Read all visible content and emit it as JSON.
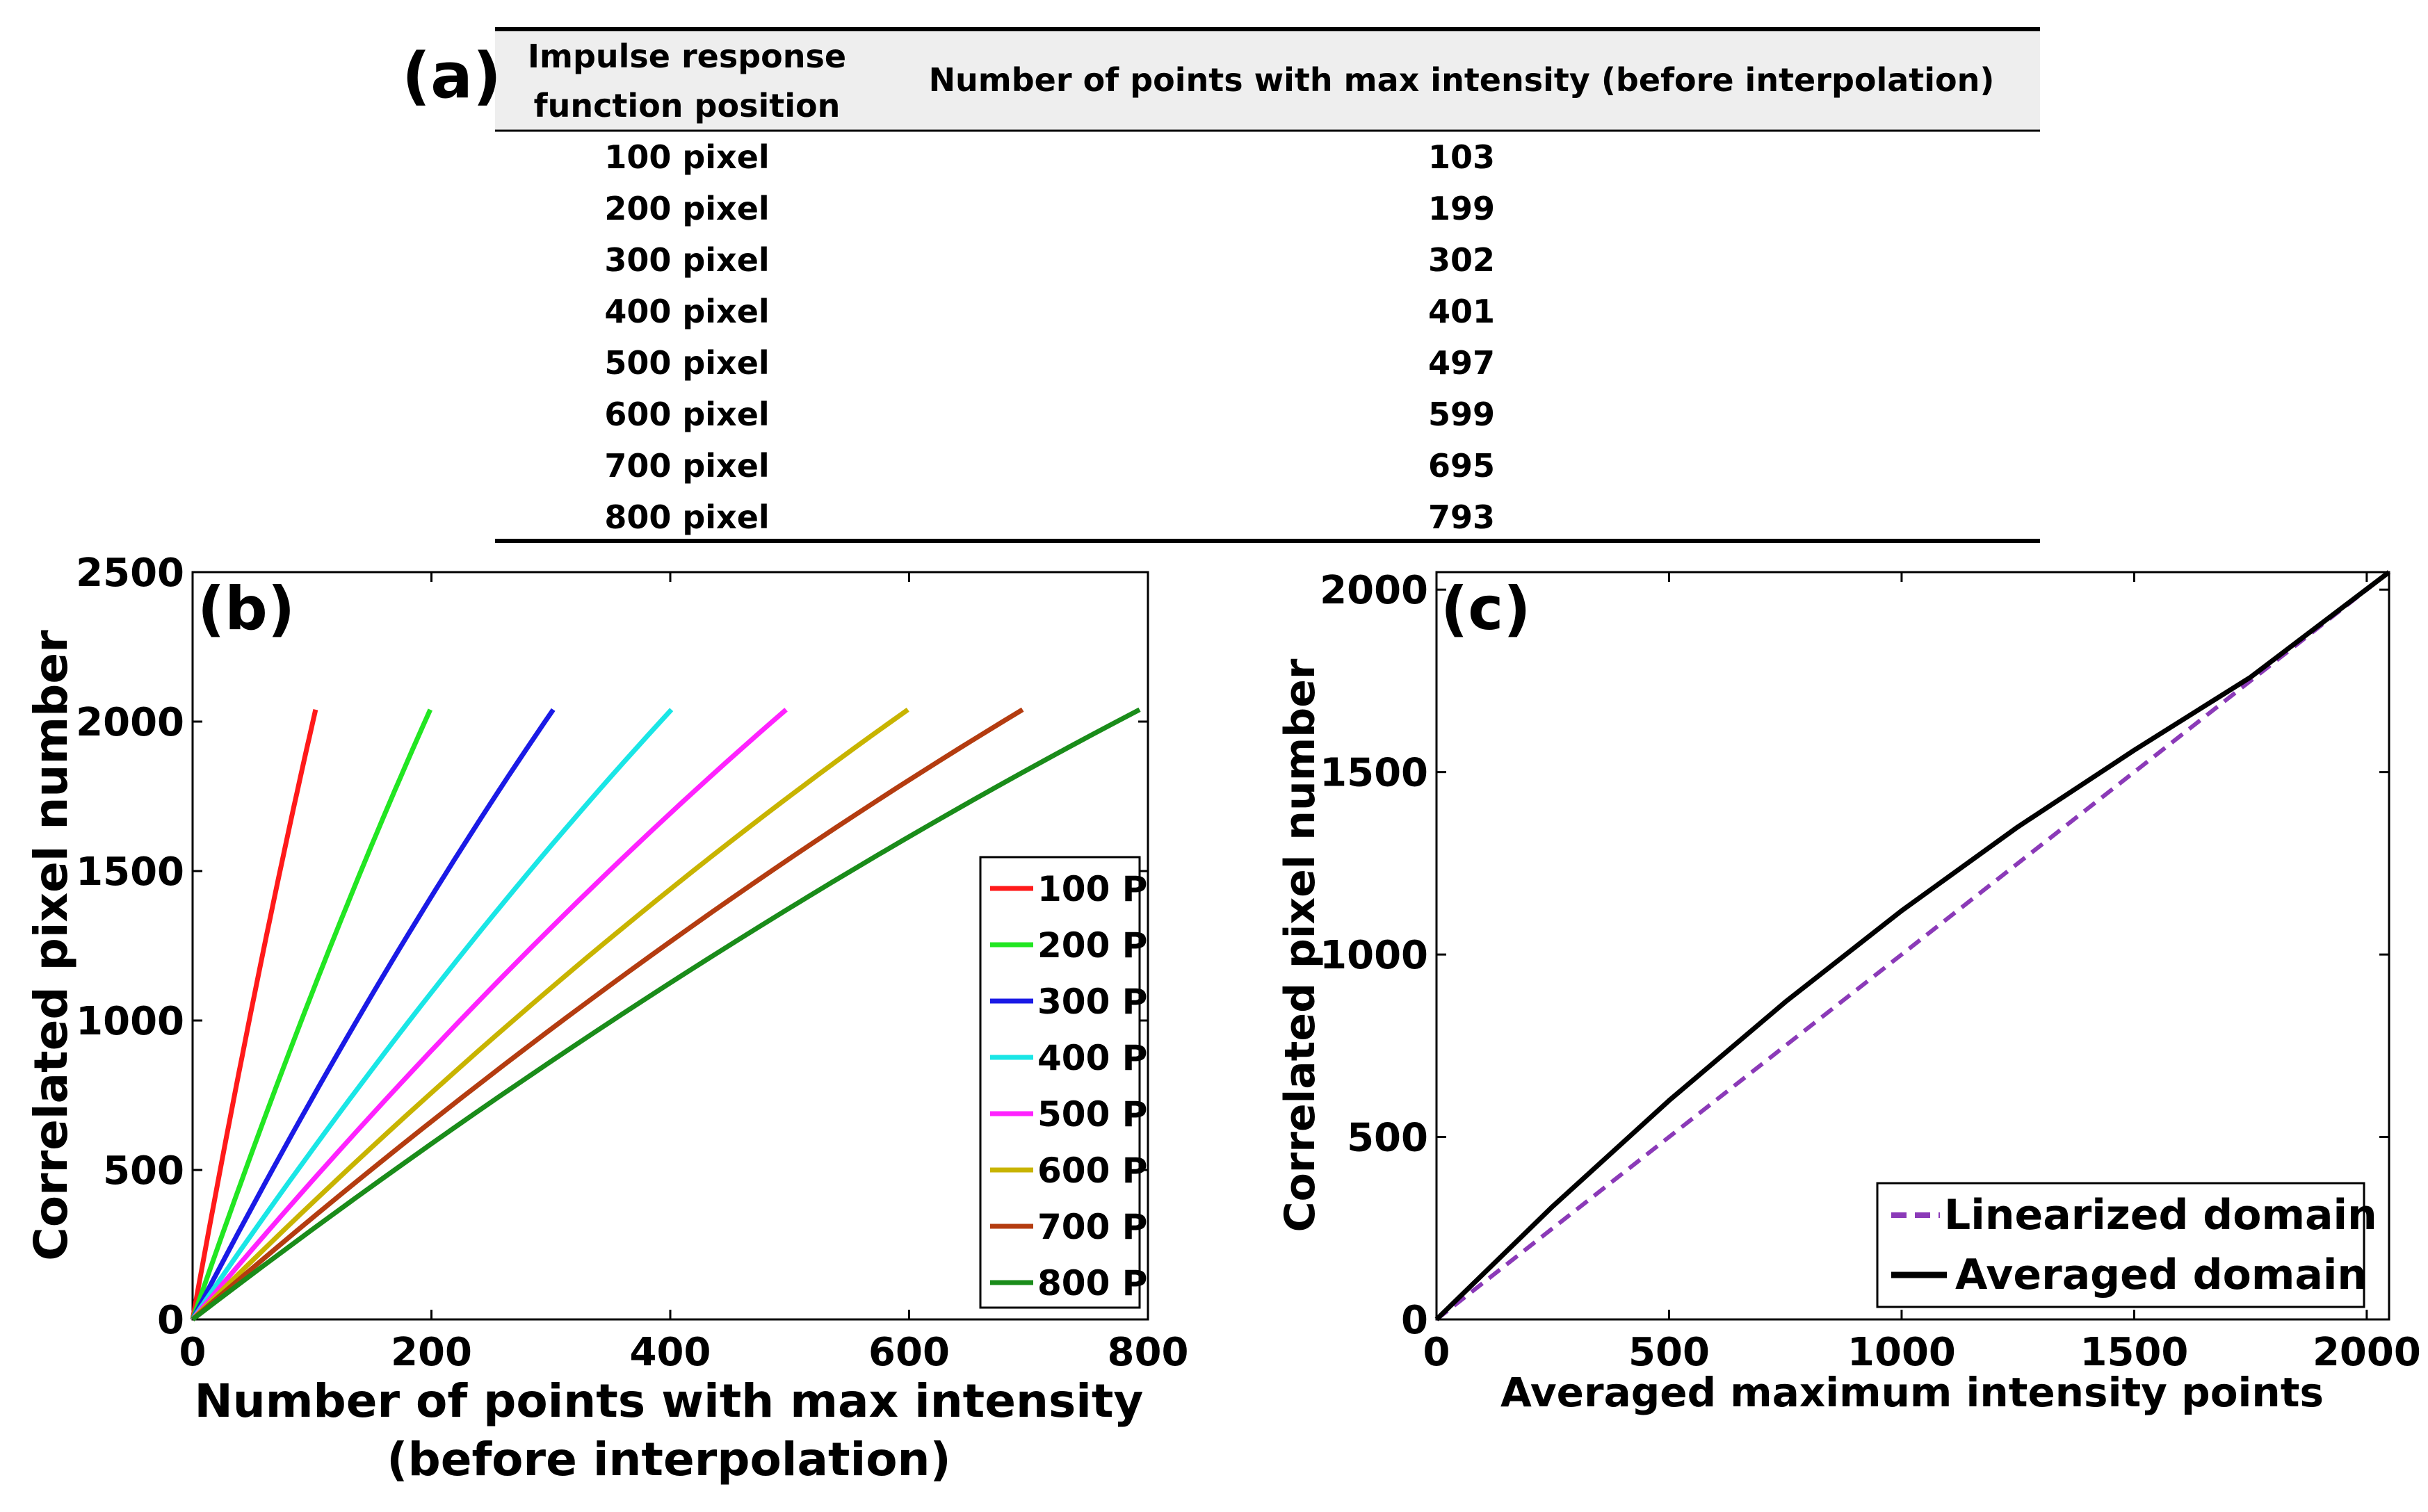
{
  "panel_a": {
    "label": "(a)",
    "col1_header_line1": "Impulse response",
    "col1_header_line2": "function position",
    "col2_header": "Number of points with max intensity (before interpolation)",
    "rows": [
      {
        "position": "100 pixel",
        "points": "103"
      },
      {
        "position": "200 pixel",
        "points": "199"
      },
      {
        "position": "300 pixel",
        "points": "302"
      },
      {
        "position": "400 pixel",
        "points": "401"
      },
      {
        "position": "500 pixel",
        "points": "497"
      },
      {
        "position": "600 pixel",
        "points": "599"
      },
      {
        "position": "700 pixel",
        "points": "695"
      },
      {
        "position": "800 pixel",
        "points": "793"
      }
    ]
  },
  "chart_data": [
    {
      "type": "line",
      "panel_label": "(b)",
      "xlabel_line1": "Number of points with max intensity",
      "xlabel_line2": "(before interpolation)",
      "ylabel": "Correlated pixel  number",
      "xlim": [
        0,
        800
      ],
      "ylim": [
        0,
        2500
      ],
      "xticks": [
        0,
        200,
        400,
        600,
        800
      ],
      "yticks": [
        0,
        500,
        1000,
        1500,
        2000,
        2500
      ],
      "xtick_labels": [
        "0",
        "200",
        "400",
        "600",
        "800"
      ],
      "ytick_labels": [
        "0",
        "500",
        "1000",
        "1500",
        "2000",
        "2500"
      ],
      "grid": false,
      "legend_position": "right",
      "series": [
        {
          "name": "100 P",
          "color": "#ff1a1a",
          "xmax": 103,
          "ymax": 2040,
          "curvature": 0.12
        },
        {
          "name": "200 P",
          "color": "#22e622",
          "xmax": 199,
          "ymax": 2040,
          "curvature": 0.13
        },
        {
          "name": "300 P",
          "color": "#1a1ae6",
          "xmax": 302,
          "ymax": 2040,
          "curvature": 0.14
        },
        {
          "name": "400 P",
          "color": "#1ae6e6",
          "xmax": 401,
          "ymax": 2040,
          "curvature": 0.15
        },
        {
          "name": "500 P",
          "color": "#ff22ff",
          "xmax": 497,
          "ymax": 2040,
          "curvature": 0.16
        },
        {
          "name": "600 P",
          "color": "#c8b400",
          "xmax": 599,
          "ymax": 2040,
          "curvature": 0.17
        },
        {
          "name": "700 P",
          "color": "#b43c10",
          "xmax": 695,
          "ymax": 2040,
          "curvature": 0.18
        },
        {
          "name": "800 P",
          "color": "#1a8c1a",
          "xmax": 793,
          "ymax": 2040,
          "curvature": 0.19
        }
      ]
    },
    {
      "type": "line",
      "panel_label": "(c)",
      "xlabel": "Averaged maximum intensity points",
      "ylabel": "Correlated pixel number",
      "xlim": [
        0,
        2048
      ],
      "ylim": [
        0,
        2048
      ],
      "xticks": [
        0,
        500,
        1000,
        1500,
        2000
      ],
      "yticks": [
        0,
        500,
        1000,
        1500,
        2000
      ],
      "xtick_labels": [
        "0",
        "500",
        "1000",
        "1500",
        "2000"
      ],
      "ytick_labels": [
        "0",
        "500",
        "1000",
        "1500",
        "2000"
      ],
      "grid": false,
      "legend_position": "bottom-right",
      "series": [
        {
          "name": "Linearized domain",
          "color": "#8b3ab8",
          "style": "dashed",
          "x": [
            0,
            2048
          ],
          "y": [
            0,
            2048
          ]
        },
        {
          "name": "Averaged domain",
          "color": "#000000",
          "style": "solid",
          "x": [
            0,
            250,
            500,
            750,
            1000,
            1250,
            1500,
            1750,
            2048
          ],
          "y": [
            0,
            310,
            600,
            870,
            1120,
            1350,
            1560,
            1760,
            2048
          ]
        }
      ]
    }
  ]
}
